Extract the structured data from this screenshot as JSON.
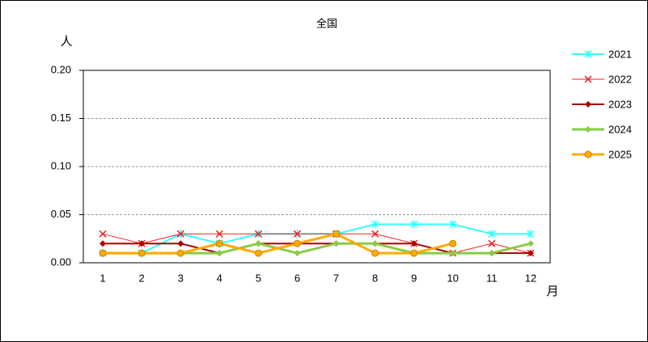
{
  "chart_data": {
    "type": "line",
    "title": "全国",
    "y_label": "人",
    "x_label": "月",
    "categories": [
      "1",
      "2",
      "3",
      "4",
      "5",
      "6",
      "7",
      "8",
      "9",
      "10",
      "11",
      "12"
    ],
    "series": [
      {
        "name": "2021",
        "color": "#33ffff",
        "marker": "star",
        "width": 2,
        "values": [
          0.01,
          0.01,
          0.03,
          0.02,
          0.03,
          0.03,
          0.03,
          0.04,
          0.04,
          0.04,
          0.03,
          0.03
        ]
      },
      {
        "name": "2022",
        "color": "#ee2222",
        "marker": "x",
        "width": 1,
        "values": [
          0.03,
          0.02,
          0.03,
          0.03,
          0.03,
          0.03,
          0.03,
          0.03,
          0.02,
          0.01,
          0.02,
          0.01
        ]
      },
      {
        "name": "2023",
        "color": "#aa0000",
        "marker": "diamond",
        "width": 2,
        "values": [
          0.02,
          0.02,
          0.02,
          0.01,
          0.02,
          0.02,
          0.02,
          0.02,
          0.02,
          0.01,
          0.01,
          0.01
        ]
      },
      {
        "name": "2024",
        "color": "#88cc44",
        "marker": "diamond",
        "width": 3,
        "values": [
          0.01,
          0.01,
          0.01,
          0.01,
          0.02,
          0.01,
          0.02,
          0.02,
          0.01,
          0.01,
          0.01,
          0.02
        ]
      },
      {
        "name": "2025",
        "color": "#ffaa00",
        "marker": "circle",
        "width": 3,
        "values": [
          0.01,
          0.01,
          0.01,
          0.02,
          0.01,
          0.02,
          0.03,
          0.01,
          0.01,
          0.02,
          null,
          null
        ]
      }
    ],
    "ylim": [
      0,
      0.2
    ],
    "yticks": [
      {
        "value": 0,
        "label": "0.00"
      },
      {
        "value": 0.05,
        "label": "0.05"
      },
      {
        "value": 0.1,
        "label": "0.10"
      },
      {
        "value": 0.15,
        "label": "0.15"
      },
      {
        "value": 0.2,
        "label": "0.20"
      }
    ],
    "grid": true,
    "legend": "right"
  }
}
